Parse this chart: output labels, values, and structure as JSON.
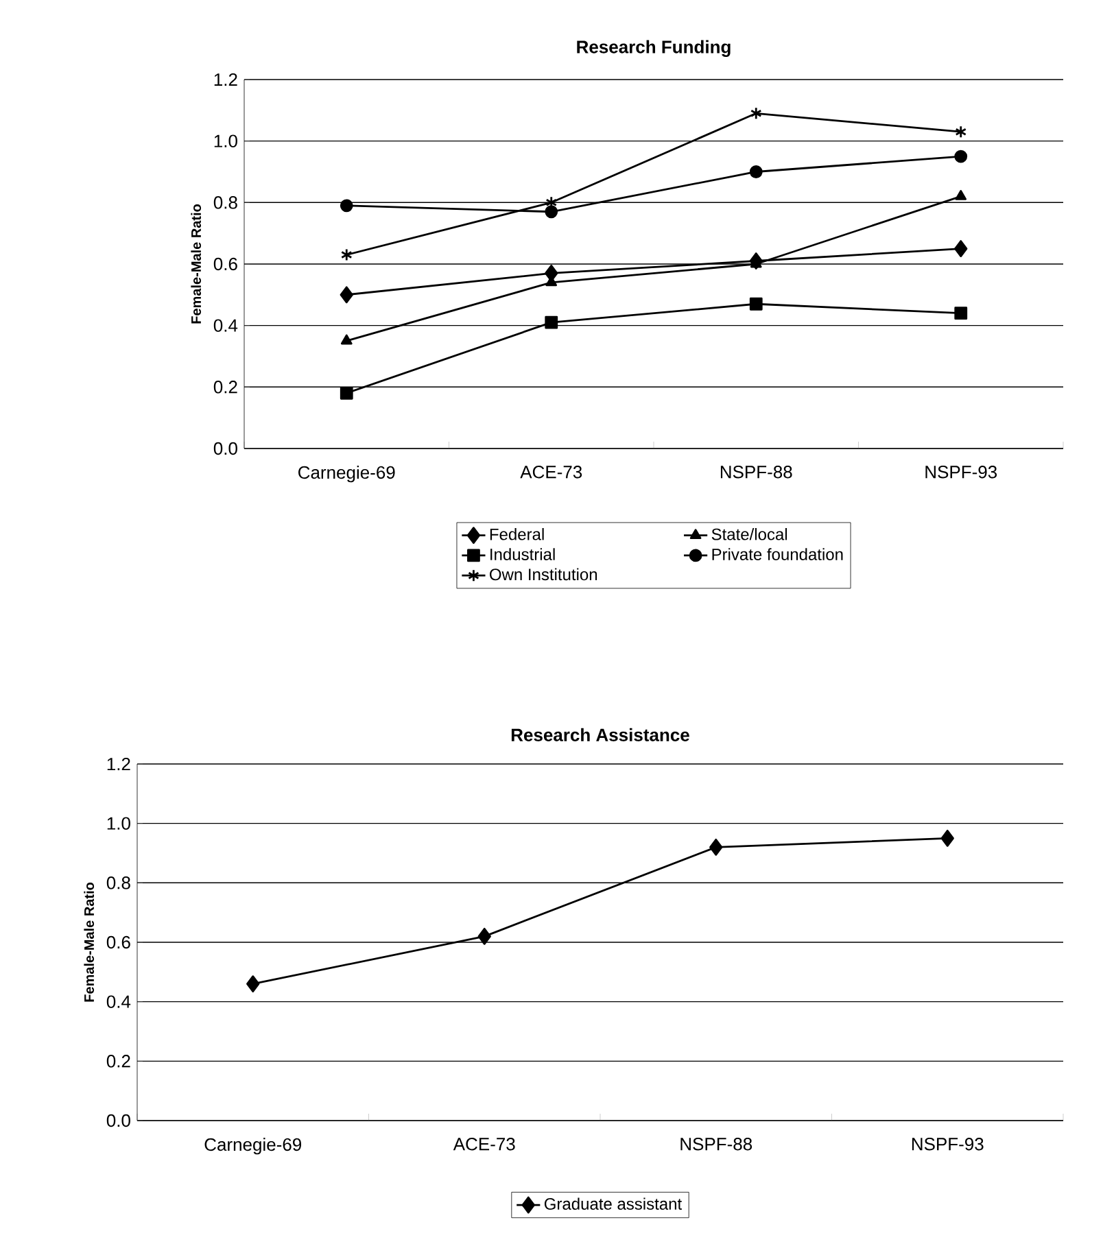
{
  "chart_data": [
    {
      "type": "line",
      "title": "Research Funding",
      "ylabel": "Female-Male Ratio",
      "categories": [
        "Carnegie-69",
        "ACE-73",
        "NSPF-88",
        "NSPF-93"
      ],
      "ylim": [
        0,
        1.2
      ],
      "yticks": [
        {
          "value": 0,
          "label": "0.0"
        },
        {
          "value": 0.2,
          "label": "0.2"
        },
        {
          "value": 0.4,
          "label": "0.4"
        },
        {
          "value": 0.6,
          "label": "0.6"
        },
        {
          "value": 0.8,
          "label": "0.8"
        },
        {
          "value": 1.0,
          "label": "1.0"
        },
        {
          "value": 1.2,
          "label": "1.2"
        }
      ],
      "grid": "y",
      "legend": "bottom",
      "series": [
        {
          "name": "Federal",
          "color": "#000000",
          "marker": "diamond",
          "values": [
            0.5,
            0.57,
            0.61,
            0.65
          ]
        },
        {
          "name": "State/local",
          "color": "#000000",
          "marker": "triangle",
          "values": [
            0.35,
            0.54,
            0.6,
            0.82
          ]
        },
        {
          "name": "Industrial",
          "color": "#000000",
          "marker": "square",
          "values": [
            0.18,
            0.41,
            0.47,
            0.44
          ]
        },
        {
          "name": "Private foundation",
          "color": "#000000",
          "marker": "circle",
          "values": [
            0.79,
            0.77,
            0.9,
            0.95
          ]
        },
        {
          "name": "Own Institution",
          "color": "#000000",
          "marker": "cross",
          "values": [
            0.63,
            0.8,
            1.09,
            1.03
          ]
        }
      ]
    },
    {
      "type": "line",
      "title": "Research Assistance",
      "ylabel": "Female-Male Ratio",
      "categories": [
        "Carnegie-69",
        "ACE-73",
        "NSPF-88",
        "NSPF-93"
      ],
      "ylim": [
        0,
        1.2
      ],
      "yticks": [
        {
          "value": 0,
          "label": "0.0"
        },
        {
          "value": 0.2,
          "label": "0.2"
        },
        {
          "value": 0.4,
          "label": "0.4"
        },
        {
          "value": 0.6,
          "label": "0.6"
        },
        {
          "value": 0.8,
          "label": "0.8"
        },
        {
          "value": 1.0,
          "label": "1.0"
        },
        {
          "value": 1.2,
          "label": "1.2"
        }
      ],
      "grid": "y",
      "legend": "bottom",
      "series": [
        {
          "name": "Graduate assistant",
          "color": "#000000",
          "marker": "diamond",
          "values": [
            0.46,
            0.62,
            0.92,
            0.95
          ]
        }
      ]
    }
  ]
}
